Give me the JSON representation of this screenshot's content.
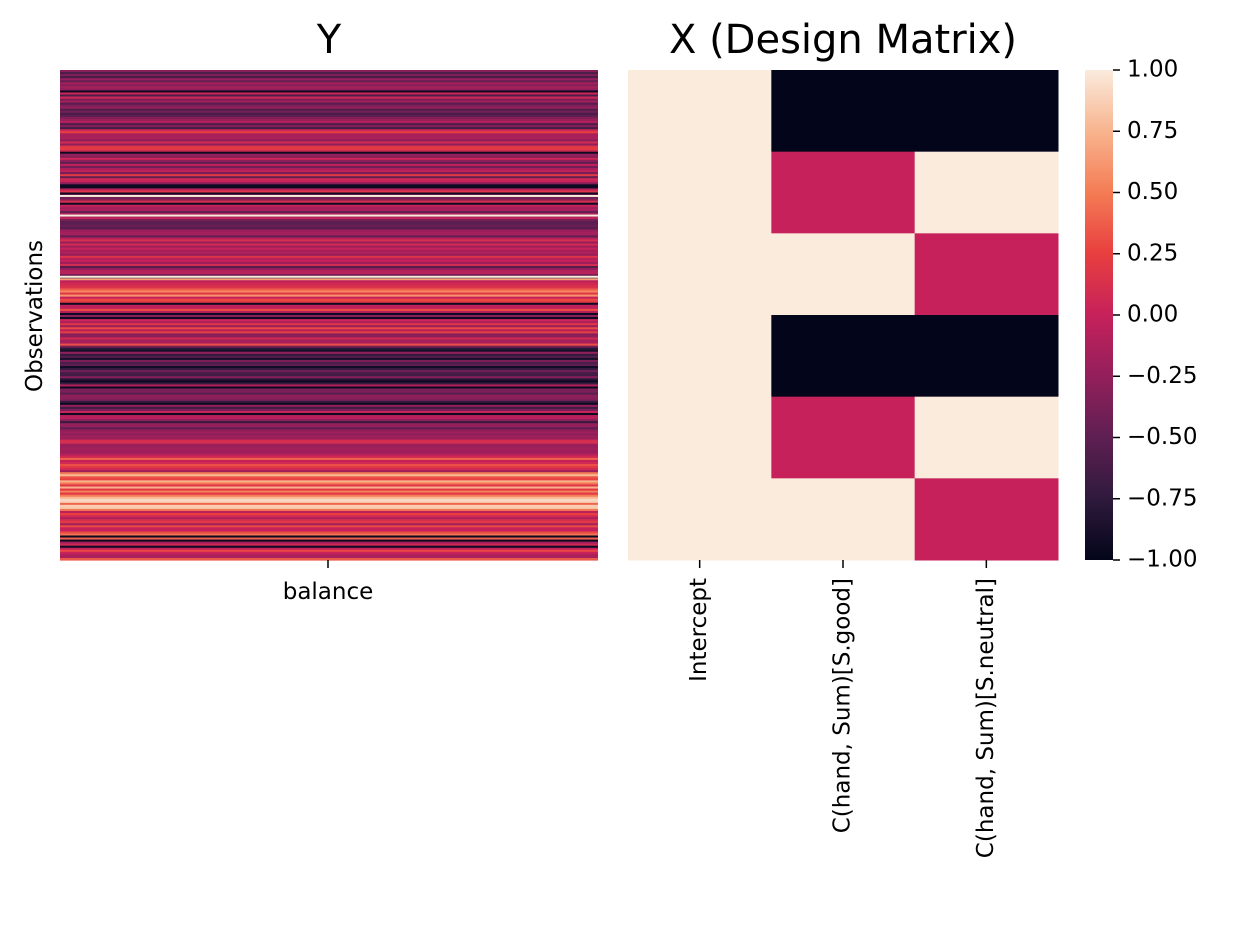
{
  "chart_data": [
    {
      "type": "heatmap",
      "title": "Y",
      "xlabel": "",
      "ylabel": "Observations",
      "x_ticks": [
        "balance"
      ],
      "y_ticks": [],
      "stripe_profile": [
        {
          "from": 0.0,
          "to": 0.12,
          "level": 0.35
        },
        {
          "from": 0.12,
          "to": 0.3,
          "level": 0.45
        },
        {
          "from": 0.3,
          "to": 0.42,
          "level": 0.4
        },
        {
          "from": 0.42,
          "to": 0.48,
          "level": 0.65
        },
        {
          "from": 0.48,
          "to": 0.56,
          "level": 0.5
        },
        {
          "from": 0.56,
          "to": 0.64,
          "level": 0.2
        },
        {
          "from": 0.64,
          "to": 0.74,
          "level": 0.33
        },
        {
          "from": 0.74,
          "to": 0.82,
          "level": 0.55
        },
        {
          "from": 0.82,
          "to": 0.9,
          "level": 0.78
        },
        {
          "from": 0.9,
          "to": 1.0,
          "level": 0.6
        }
      ],
      "white_line_positions": [
        0.255,
        0.295,
        0.42
      ],
      "n_rows": 240
    },
    {
      "type": "heatmap",
      "title": "X (Design Matrix)",
      "columns": [
        "Intercept",
        "C(hand, Sum)[S.good]",
        "C(hand, Sum)[S.neutral]"
      ],
      "values": [
        [
          1,
          -1,
          -1
        ],
        [
          1,
          0,
          1
        ],
        [
          1,
          1,
          0
        ],
        [
          1,
          -1,
          -1
        ],
        [
          1,
          0,
          1
        ],
        [
          1,
          1,
          0
        ]
      ],
      "colorbar": {
        "vmin": -1.0,
        "vmax": 1.0,
        "ticks": [
          "1.00",
          "0.75",
          "0.50",
          "0.25",
          "0.00",
          "−0.25",
          "−0.50",
          "−0.75",
          "−1.00"
        ]
      }
    }
  ],
  "colors": {
    "rocket_stops": [
      "#03051a",
      "#2f1a3c",
      "#5e1f52",
      "#931f5b",
      "#c6215b",
      "#e83f3f",
      "#f47c55",
      "#f8b48e",
      "#faebdd"
    ]
  }
}
